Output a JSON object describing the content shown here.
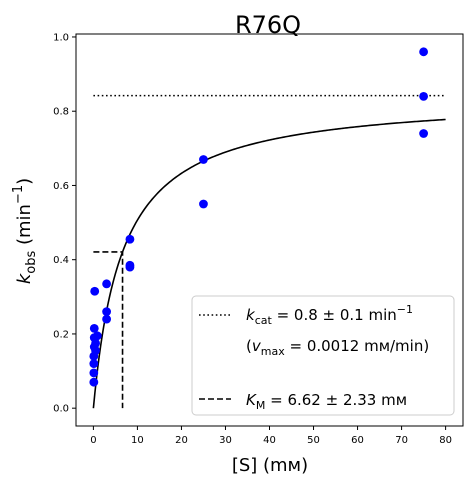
{
  "chart_data": {
    "type": "scatter",
    "title": "R76Q",
    "xlabel": "[S] (mм)",
    "ylabel_main": "k",
    "ylabel_sub": "obs",
    "ylabel_unit_open": " (min",
    "ylabel_unit_sup": "−1",
    "ylabel_unit_close": ")",
    "xlim": [
      -3.95,
      83.95
    ],
    "ylim": [
      -0.048,
      1.008
    ],
    "xticks": [
      0,
      10,
      20,
      30,
      40,
      50,
      60,
      70,
      80
    ],
    "yticks": [
      0.0,
      0.2,
      0.4,
      0.6,
      0.8,
      1.0
    ],
    "xtick_labels": [
      "0",
      "10",
      "20",
      "30",
      "40",
      "50",
      "60",
      "70",
      "80"
    ],
    "ytick_labels": [
      "0.0",
      "0.2",
      "0.4",
      "0.6",
      "0.8",
      "1.0"
    ],
    "grid": false,
    "legend_position": "lower-right",
    "series": [
      {
        "type": "scatter",
        "color": "#0000ff",
        "x": [
          0.1,
          0.1,
          0.1,
          0.1,
          0.2,
          0.2,
          0.2,
          0.3,
          0.5,
          0.5,
          0.9,
          3.0,
          3.0,
          3.0,
          8.3,
          8.3,
          8.3,
          25.0,
          25.0,
          75.0,
          75.0,
          75.0
        ],
        "y": [
          0.07,
          0.095,
          0.12,
          0.14,
          0.165,
          0.19,
          0.215,
          0.315,
          0.155,
          0.175,
          0.195,
          0.24,
          0.26,
          0.335,
          0.38,
          0.385,
          0.455,
          0.55,
          0.67,
          0.74,
          0.84,
          0.96
        ]
      },
      {
        "type": "line",
        "style": "solid",
        "color": "#000000",
        "model": "michaelis-menten",
        "kcat": 0.842,
        "km": 6.62,
        "x_range": [
          0,
          80
        ]
      },
      {
        "type": "line",
        "style": "dotted",
        "color": "#000000",
        "x": [
          0,
          80
        ],
        "y": [
          0.842,
          0.842
        ]
      },
      {
        "type": "line",
        "style": "dashed",
        "color": "#000000",
        "x": [
          0,
          6.62,
          6.62
        ],
        "y": [
          0.421,
          0.421,
          0.0
        ]
      }
    ],
    "legend": {
      "kcat_main": "k",
      "kcat_sub": "cat",
      "kcat_text": " = 0.8 ± 0.1 min",
      "kcat_sup": "−1",
      "vmax_open": "(",
      "vmax_main": "v",
      "vmax_sub": "max",
      "vmax_text": " = 0.0012 mм/min)",
      "km_main": "K",
      "km_sub": "M",
      "km_text": " = 6.62 ± 2.33 mм"
    }
  }
}
